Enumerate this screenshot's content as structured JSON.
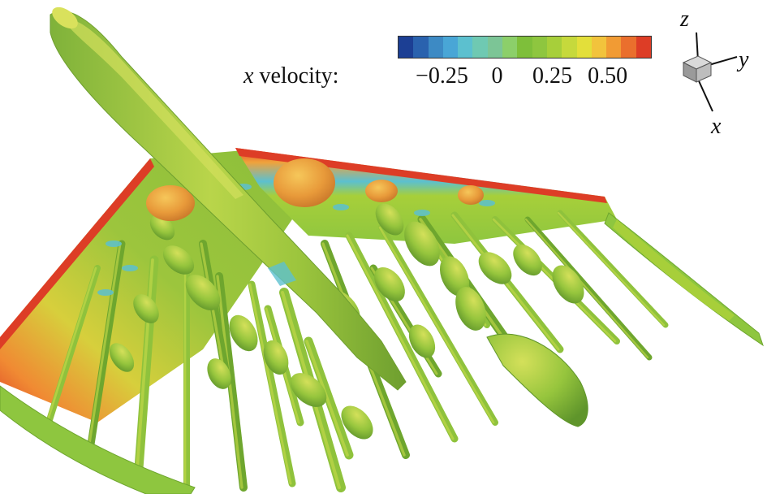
{
  "legend": {
    "variable_symbol": "x",
    "variable_rest": " velocity:",
    "ticks": [
      {
        "label": "−0.25",
        "value": -0.25
      },
      {
        "label": "0",
        "value": 0
      },
      {
        "label": "0.25",
        "value": 0.25
      },
      {
        "label": "0.50",
        "value": 0.5
      }
    ],
    "range": [
      -0.45,
      0.7
    ],
    "colors": [
      "#1c3f94",
      "#2a62ae",
      "#3d8ac4",
      "#49a6d6",
      "#5cc0cf",
      "#6fc9b2",
      "#7cc596",
      "#8ccf6a",
      "#7ebf3a",
      "#8ec63f",
      "#a7cf3a",
      "#c6d93c",
      "#e3df3a",
      "#f2c33c",
      "#f19b34",
      "#ea6f2d",
      "#dd3d26"
    ]
  },
  "axes": {
    "z_label": "z",
    "y_label": "y",
    "x_label": "x",
    "cube_colors": [
      "#d9d9d9",
      "#9a9a9a",
      "#bdbdbd"
    ]
  },
  "scene": {
    "wing_edge_color": "#e0452a",
    "wing_mid_color": "#f0a23b",
    "body_color": "#9cc53d",
    "body_highlight": "#c9dc4a",
    "vortex_color": "#8fc23c",
    "vortex_dark": "#6ea62e",
    "bubble_color": "#e89a3a",
    "cyan_color": "#5cc0cf"
  }
}
